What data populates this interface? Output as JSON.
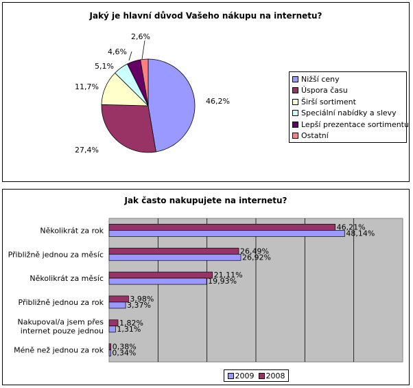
{
  "chart_data": [
    {
      "type": "pie",
      "title": "Jaký je hlavní důvod Vašeho nákupu na internetu?",
      "categories": [
        "Nižší ceny",
        "Úspora času",
        "Širší sortiment",
        "Speciální nabídky a slevy",
        "Lepší prezentace sortimentu",
        "Ostatní"
      ],
      "values": [
        46.2,
        27.4,
        11.7,
        5.1,
        4.6,
        2.6
      ],
      "value_labels": [
        "46,2%",
        "27,4%",
        "11,7%",
        "5,1%",
        "4,6%",
        "2,6%"
      ],
      "colors": [
        "#9999ff",
        "#993366",
        "#ffffcc",
        "#ccffff",
        "#660066",
        "#ff8080"
      ],
      "legend_placement": "right"
    },
    {
      "type": "bar",
      "orientation": "horizontal",
      "title": "Jak často nakupujete na internetu?",
      "categories": [
        "Několikrát za rok",
        "Přibližně jednou za měsíc",
        "Několikrát za měsíc",
        "Přibližně jednou za rok",
        "Nakupoval/a jsem přes internet pouze jednou",
        "Méně než jednou za rok"
      ],
      "category_lines": [
        [
          "Několikrát za rok"
        ],
        [
          "Přibližně jednou za měsíc"
        ],
        [
          "Několikrát za měsíc"
        ],
        [
          "Přibližně jednou za rok"
        ],
        [
          "Nakupoval/a jsem přes",
          "internet pouze jednou"
        ],
        [
          "Méně než jednou za rok"
        ]
      ],
      "series": [
        {
          "name": "2008",
          "values": [
            46.21,
            26.49,
            21.11,
            3.98,
            1.82,
            0.38
          ],
          "labels": [
            "46,21%",
            "26,49%",
            "21,11%",
            "3,98%",
            "1,82%",
            "0,38%"
          ],
          "color": "#993366"
        },
        {
          "name": "2009",
          "values": [
            48.14,
            26.92,
            19.93,
            3.37,
            1.31,
            0.34
          ],
          "labels": [
            "48,14%",
            "26,92%",
            "19,93%",
            "3,37%",
            "1,31%",
            "0,34%"
          ],
          "color": "#9999ff"
        }
      ],
      "xlim": [
        0,
        60
      ],
      "grid": true,
      "plot_background": "#c0c0c0",
      "legend_placement": "bottom",
      "legend_order": [
        "2009",
        "2008"
      ]
    }
  ]
}
